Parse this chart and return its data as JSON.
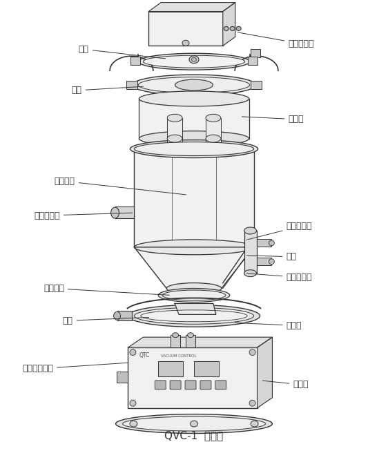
{
  "title": "QVC-1  结构图",
  "title_fontsize": 11,
  "bg_color": "#ffffff",
  "line_color": "#333333",
  "label_fontsize": 9,
  "labels": {
    "ka_long": "卡箍",
    "pan_quan_top": "盘圈",
    "zhen_kong_fashengqi": "真空发生器",
    "guo_lvqi": "过滤器",
    "zhen_kong_liaodou": "真空料斗",
    "guan_men_tiaosuyuan": "关门调速阀",
    "jie_xiliao_ruanguan": "接吸料软管",
    "qi_gang": "气缸",
    "men_mifengquan": "门密封圈",
    "kai_men_tiaosuyuan": "开门调速阀",
    "pan_quan_bot": "盘圈",
    "fang_liaomen": "放料门",
    "jie_jin_kaiguan_chatou": "接近开关插头",
    "kong_zhi_he": "控制盒"
  }
}
